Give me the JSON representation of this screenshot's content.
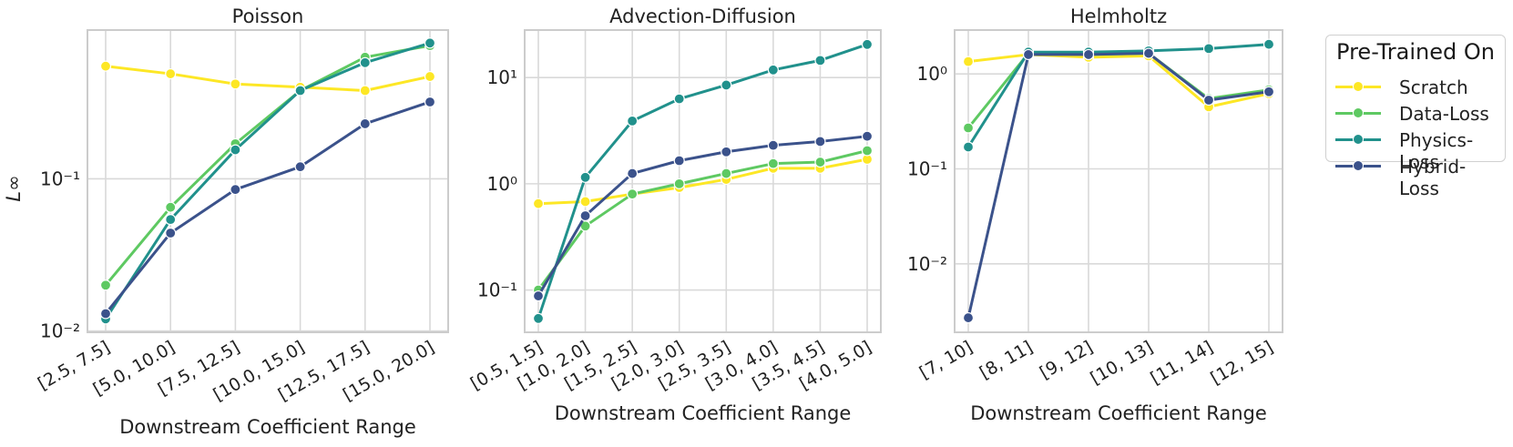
{
  "legend": {
    "title": "Pre-Trained On",
    "entries": [
      {
        "label": "Scratch",
        "color": "#fde725"
      },
      {
        "label": "Data-Loss",
        "color": "#5ec962"
      },
      {
        "label": "Physics-Loss",
        "color": "#21918c"
      },
      {
        "label": "Hybrid-Loss",
        "color": "#3b528b"
      }
    ]
  },
  "chart_data": [
    {
      "type": "line",
      "title": "Poisson",
      "xlabel": "Downstream Coefficient Range",
      "ylabel": "L∞",
      "yscale": "log",
      "ylim": [
        0.0098,
        0.95
      ],
      "yticks": [
        {
          "value": 0.01,
          "label": "10⁻²"
        },
        {
          "value": 0.1,
          "label": "10⁻¹"
        }
      ],
      "categories": [
        "[2.5, 7.5]",
        "[5.0, 10.0]",
        "[7.5, 12.5]",
        "[10.0, 15.0]",
        "[12.5, 17.5]",
        "[15.0, 20.0]"
      ],
      "series": [
        {
          "name": "Scratch",
          "values": [
            0.55,
            0.49,
            0.42,
            0.4,
            0.38,
            0.47
          ]
        },
        {
          "name": "Data-Loss",
          "values": [
            0.02,
            0.065,
            0.17,
            0.38,
            0.63,
            0.75
          ]
        },
        {
          "name": "Physics-Loss",
          "values": [
            0.012,
            0.054,
            0.155,
            0.38,
            0.58,
            0.78
          ]
        },
        {
          "name": "Hybrid-Loss",
          "values": [
            0.013,
            0.044,
            0.085,
            0.12,
            0.23,
            0.32
          ]
        }
      ]
    },
    {
      "type": "line",
      "title": "Advection-Diffusion",
      "xlabel": "Downstream Coefficient Range",
      "ylabel": "",
      "yscale": "log",
      "ylim": [
        0.04,
        28
      ],
      "yticks": [
        {
          "value": 0.1,
          "label": "10⁻¹"
        },
        {
          "value": 1,
          "label": "10⁰"
        },
        {
          "value": 10,
          "label": "10¹"
        }
      ],
      "categories": [
        "[0.5, 1.5]",
        "[1.0, 2.0]",
        "[1.5, 2.5]",
        "[2.0, 3.0]",
        "[2.5, 3.5]",
        "[3.0, 4.0]",
        "[3.5, 4.5]",
        "[4.0, 5.0]"
      ],
      "series": [
        {
          "name": "Scratch",
          "values": [
            0.65,
            0.68,
            0.8,
            0.92,
            1.1,
            1.4,
            1.4,
            1.7
          ]
        },
        {
          "name": "Data-Loss",
          "values": [
            0.1,
            0.4,
            0.8,
            1.0,
            1.25,
            1.55,
            1.6,
            2.05
          ]
        },
        {
          "name": "Physics-Loss",
          "values": [
            0.054,
            1.15,
            3.9,
            6.3,
            8.5,
            11.8,
            14.5,
            20.5
          ]
        },
        {
          "name": "Hybrid-Loss",
          "values": [
            0.088,
            0.5,
            1.25,
            1.65,
            2.0,
            2.3,
            2.5,
            2.8
          ]
        }
      ]
    },
    {
      "type": "line",
      "title": "Helmholtz",
      "xlabel": "Downstream Coefficient Range",
      "ylabel": "",
      "yscale": "log",
      "ylim": [
        0.0019,
        2.9
      ],
      "yticks": [
        {
          "value": 0.01,
          "label": "10⁻²"
        },
        {
          "value": 0.1,
          "label": "10⁻¹"
        },
        {
          "value": 1,
          "label": "10⁰"
        }
      ],
      "categories": [
        "[7, 10]",
        "[8, 11]",
        "[9, 12]",
        "[10, 13]",
        "[11, 14]",
        "[12, 15]"
      ],
      "series": [
        {
          "name": "Scratch",
          "values": [
            1.35,
            1.6,
            1.5,
            1.55,
            0.45,
            0.62
          ]
        },
        {
          "name": "Data-Loss",
          "values": [
            0.27,
            1.65,
            1.6,
            1.65,
            0.55,
            0.68
          ]
        },
        {
          "name": "Physics-Loss",
          "values": [
            0.17,
            1.7,
            1.7,
            1.75,
            1.85,
            2.05
          ]
        },
        {
          "name": "Hybrid-Loss",
          "values": [
            0.0027,
            1.6,
            1.6,
            1.65,
            0.53,
            0.65
          ]
        }
      ]
    }
  ]
}
